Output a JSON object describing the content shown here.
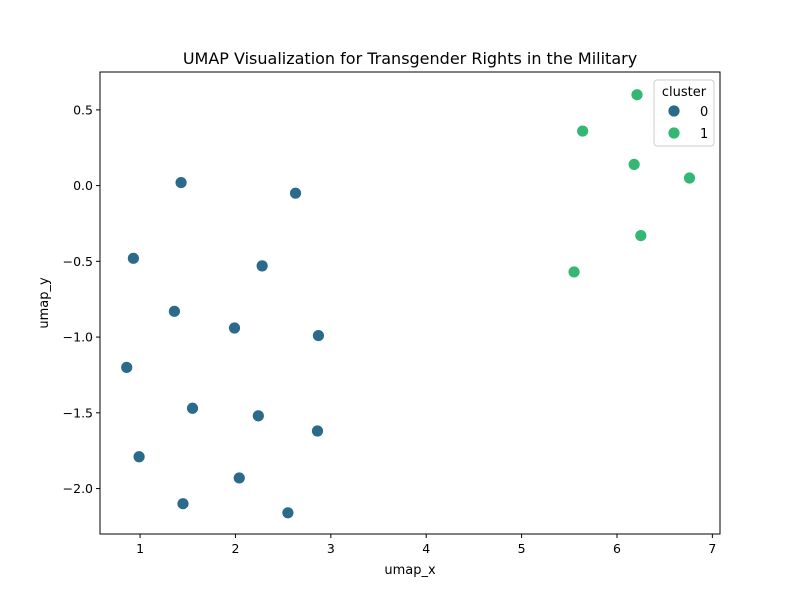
{
  "chart_data": {
    "type": "scatter",
    "title": "UMAP Visualization for Transgender Rights in the Military",
    "xlabel": "umap_x",
    "ylabel": "umap_y",
    "xlim": [
      0.58,
      7.08
    ],
    "ylim": [
      -2.3,
      0.75
    ],
    "xticks": [
      1,
      2,
      3,
      4,
      5,
      6,
      7
    ],
    "yticks": [
      0.5,
      0.0,
      -0.5,
      -1.0,
      -1.5,
      -2.0
    ],
    "xtick_labels": [
      "1",
      "2",
      "3",
      "4",
      "5",
      "6",
      "7"
    ],
    "ytick_labels": [
      "0.5",
      "0.0",
      "−0.5",
      "−1.0",
      "−1.5",
      "−2.0"
    ],
    "grid": false,
    "legend": {
      "title": "cluster",
      "placement": "top-right",
      "entries": [
        {
          "label": "0",
          "color": "#2c6a8b"
        },
        {
          "label": "1",
          "color": "#35b774"
        }
      ]
    },
    "series": [
      {
        "name": "0",
        "color": "#2c6a8b",
        "points": [
          {
            "x": 1.43,
            "y": 0.02
          },
          {
            "x": 2.63,
            "y": -0.05
          },
          {
            "x": 0.93,
            "y": -0.48
          },
          {
            "x": 2.28,
            "y": -0.53
          },
          {
            "x": 1.36,
            "y": -0.83
          },
          {
            "x": 1.99,
            "y": -0.94
          },
          {
            "x": 2.87,
            "y": -0.99
          },
          {
            "x": 0.86,
            "y": -1.2
          },
          {
            "x": 1.55,
            "y": -1.47
          },
          {
            "x": 2.24,
            "y": -1.52
          },
          {
            "x": 2.86,
            "y": -1.62
          },
          {
            "x": 0.99,
            "y": -1.79
          },
          {
            "x": 2.04,
            "y": -1.93
          },
          {
            "x": 1.45,
            "y": -2.1
          },
          {
            "x": 2.55,
            "y": -2.16
          }
        ]
      },
      {
        "name": "1",
        "color": "#35b774",
        "points": [
          {
            "x": 6.21,
            "y": 0.6
          },
          {
            "x": 5.64,
            "y": 0.36
          },
          {
            "x": 6.18,
            "y": 0.14
          },
          {
            "x": 6.76,
            "y": 0.05
          },
          {
            "x": 6.25,
            "y": -0.33
          },
          {
            "x": 5.55,
            "y": -0.57
          }
        ]
      }
    ]
  }
}
